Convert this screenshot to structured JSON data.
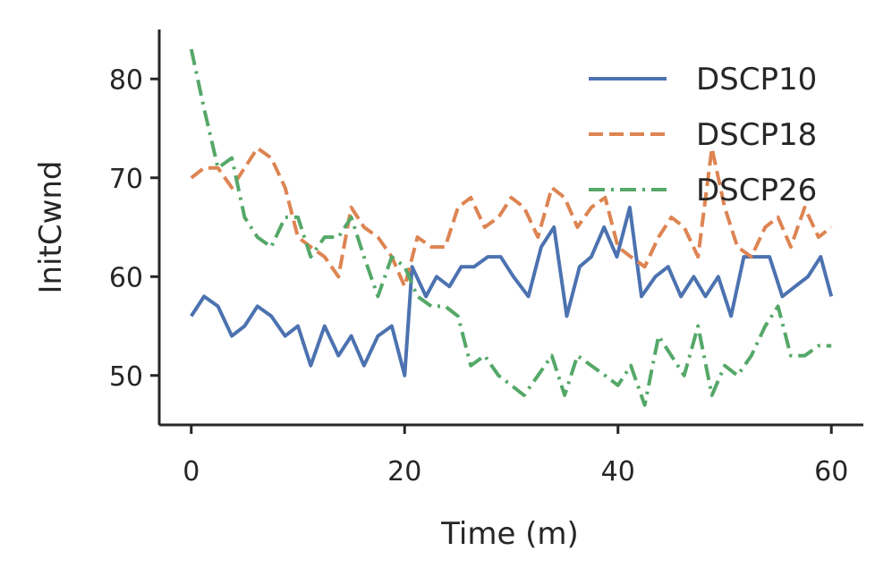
{
  "chart_data": {
    "type": "line",
    "title": "",
    "xlabel": "Time (m)",
    "ylabel": "InitCwnd",
    "xlim": [
      -3,
      63
    ],
    "ylim": [
      45,
      85
    ],
    "xticks": [
      0,
      20,
      40,
      60
    ],
    "yticks": [
      50,
      60,
      70,
      80
    ],
    "legend_position": "top-right",
    "grid": false,
    "series": [
      {
        "name": "DSCP10",
        "color": "#4c72b0",
        "dash": "solid",
        "x": [
          0,
          1.2,
          2.5,
          3.8,
          5,
          6.2,
          7.5,
          8.8,
          10,
          11.2,
          12.5,
          13.8,
          15,
          16.2,
          17.5,
          18.8,
          20,
          20.7,
          22,
          23,
          24.2,
          25.3,
          26.5,
          27.8,
          29,
          30.2,
          31.6,
          32.8,
          34,
          35.2,
          36.4,
          37.5,
          38.7,
          39.9,
          41.1,
          42.2,
          43.5,
          44.7,
          45.9,
          47.1,
          48.2,
          49.4,
          50.6,
          51.8,
          53,
          54.2,
          55.4,
          56.6,
          57.8,
          59,
          60
        ],
        "y": [
          56,
          58,
          57,
          54,
          55,
          57,
          56,
          54,
          55,
          51,
          55,
          52,
          54,
          51,
          54,
          55,
          50,
          61,
          58,
          60,
          59,
          61,
          61,
          62,
          62,
          60,
          58,
          63,
          65,
          56,
          61,
          62,
          65,
          62,
          67,
          58,
          60,
          61,
          58,
          60,
          58,
          60,
          56,
          62,
          62,
          62,
          58,
          59,
          60,
          62,
          58
        ]
      },
      {
        "name": "DSCP18",
        "color": "#dd8452",
        "dash": "dashed",
        "x": [
          0,
          1.2,
          2.5,
          3.8,
          5,
          6.2,
          7.5,
          8.8,
          10,
          11.2,
          12.5,
          13.8,
          15,
          16.2,
          17.5,
          18.8,
          20,
          21.2,
          22.5,
          23.8,
          25,
          26.2,
          27.5,
          28.8,
          30,
          31.2,
          32.5,
          33.8,
          35,
          36.2,
          37.5,
          38.8,
          40,
          41.2,
          42.5,
          43.8,
          45,
          46.2,
          47.5,
          48.8,
          50,
          51.2,
          52.5,
          53.8,
          55,
          56.2,
          57.5,
          58.8,
          60
        ],
        "y": [
          70,
          71,
          71,
          69,
          71,
          73,
          72,
          69,
          64,
          63,
          62,
          60,
          67,
          65,
          64,
          62,
          59,
          64,
          63,
          63,
          67,
          68,
          65,
          66,
          68,
          67,
          64,
          69,
          68,
          65,
          67,
          68,
          63,
          62,
          61,
          64,
          66,
          65,
          62,
          73,
          67,
          63,
          62,
          65,
          66,
          63,
          67,
          64,
          65
        ]
      },
      {
        "name": "DSCP26",
        "color": "#55a868",
        "dash": "dashdot",
        "x": [
          0,
          1.2,
          2.5,
          3.8,
          5,
          6.2,
          7.5,
          8.8,
          10,
          11.2,
          12.5,
          13.8,
          15,
          16.2,
          17.5,
          18.8,
          20,
          21.2,
          22.5,
          23.8,
          25,
          26.2,
          27.5,
          28.8,
          30,
          31.2,
          32.5,
          33.8,
          35,
          36.2,
          37.5,
          38.8,
          40,
          41.2,
          42.5,
          43.8,
          45,
          46.2,
          47.5,
          48.8,
          50,
          51.2,
          52.5,
          53.8,
          55,
          56.2,
          57.5,
          58.8,
          60
        ],
        "y": [
          83,
          77,
          71,
          72,
          66,
          64,
          63,
          66,
          66,
          62,
          64,
          64,
          66,
          62,
          58,
          62,
          61,
          58,
          57,
          57,
          56,
          51,
          52,
          50,
          49,
          48,
          50,
          52,
          48,
          52,
          51,
          50,
          49,
          51,
          47,
          54,
          52,
          50,
          55,
          48,
          51,
          50,
          52,
          55,
          57,
          52,
          52,
          53,
          53
        ]
      }
    ]
  }
}
